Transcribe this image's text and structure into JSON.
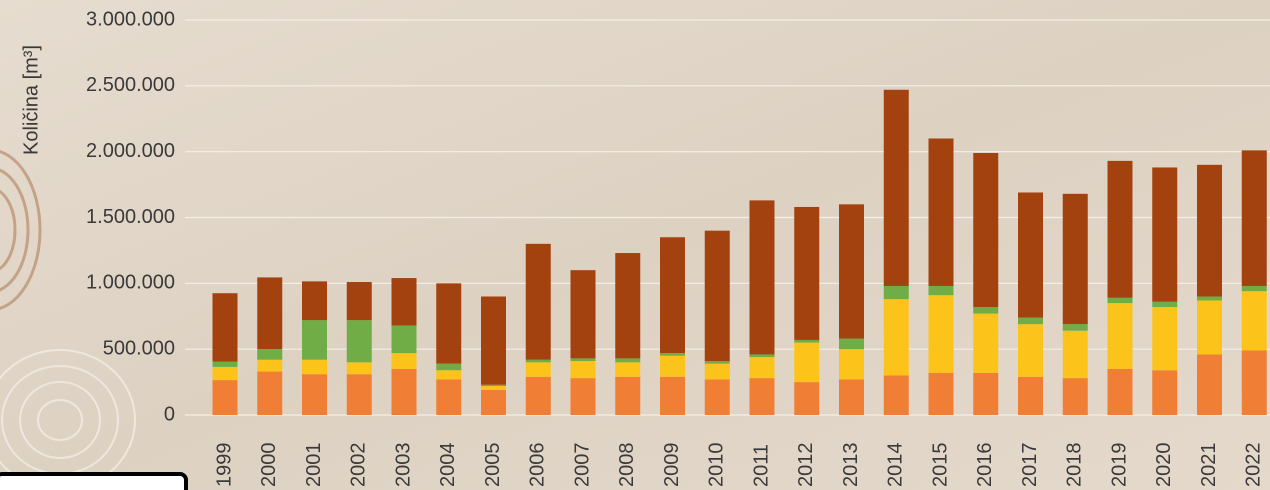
{
  "chart_data": {
    "type": "bar",
    "stacked": true,
    "y_label": "Količina [m³]",
    "categories": [
      "1999",
      "2000",
      "2001",
      "2002",
      "2003",
      "2004",
      "2005",
      "2006",
      "2007",
      "2008",
      "2009",
      "2010",
      "2011",
      "2012",
      "2013",
      "2014",
      "2015",
      "2016",
      "2017",
      "2018",
      "2019",
      "2020",
      "2021",
      "2022"
    ],
    "series": [
      {
        "color": "#f07f35",
        "values": [
          265000,
          330000,
          310000,
          310000,
          350000,
          270000,
          190000,
          290000,
          280000,
          290000,
          290000,
          270000,
          280000,
          250000,
          270000,
          300000,
          320000,
          320000,
          290000,
          280000,
          350000,
          340000,
          460000,
          490000
        ]
      },
      {
        "color": "#fcc31a",
        "values": [
          100000,
          90000,
          110000,
          90000,
          120000,
          70000,
          30000,
          110000,
          130000,
          110000,
          160000,
          120000,
          160000,
          300000,
          230000,
          580000,
          590000,
          450000,
          400000,
          360000,
          500000,
          480000,
          410000,
          450000
        ]
      },
      {
        "color": "#70ad47",
        "values": [
          40000,
          80000,
          300000,
          320000,
          210000,
          50000,
          10000,
          20000,
          20000,
          30000,
          20000,
          20000,
          20000,
          20000,
          80000,
          100000,
          70000,
          50000,
          50000,
          50000,
          40000,
          40000,
          30000,
          40000
        ]
      },
      {
        "color": "#a3420f",
        "values": [
          520000,
          545000,
          295000,
          290000,
          360000,
          610000,
          670000,
          880000,
          670000,
          800000,
          880000,
          990000,
          1170000,
          1010000,
          1020000,
          1490000,
          1120000,
          1170000,
          950000,
          990000,
          1040000,
          1020000,
          1000000,
          1030000
        ]
      }
    ],
    "ylim": [
      0,
      3000000
    ],
    "yticks": [
      0,
      {
        "value": 500000,
        "label": "500.000"
      },
      {
        "value": 1000000,
        "label": "1.000.000"
      },
      {
        "value": 1500000,
        "label": "1.500.000"
      },
      {
        "value": 2000000,
        "label": "2.000.000"
      },
      {
        "value": 2500000,
        "label": "2.500.000"
      },
      {
        "value": 3000000,
        "label": "3.000.000"
      }
    ],
    "grid": true
  }
}
